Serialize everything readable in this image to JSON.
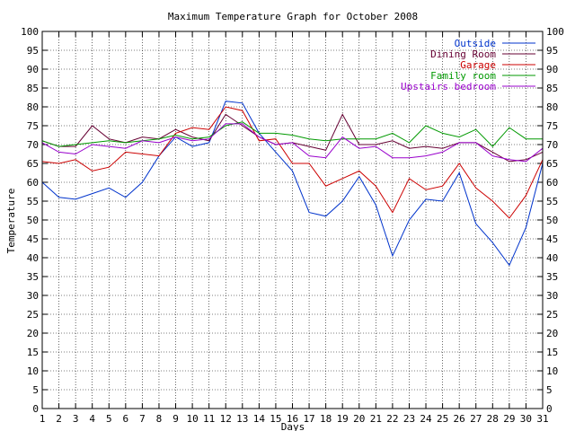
{
  "chart_data": {
    "type": "line",
    "title": "Maximum Temperature Graph for October 2008",
    "xlabel": "Days",
    "ylabel": "Temperature",
    "x": [
      1,
      2,
      3,
      4,
      5,
      6,
      7,
      8,
      9,
      10,
      11,
      12,
      13,
      14,
      15,
      16,
      17,
      18,
      19,
      20,
      21,
      22,
      23,
      24,
      25,
      26,
      27,
      28,
      29,
      30,
      31
    ],
    "xlim": [
      1,
      31
    ],
    "ylim": [
      0,
      100
    ],
    "ytick_step": 5,
    "grid": true,
    "legend_position": "top-right",
    "series": [
      {
        "name": "Outside",
        "color": "#0033cc",
        "values": [
          60,
          56,
          55.5,
          57,
          58.5,
          56,
          60,
          67,
          72,
          69.5,
          70.5,
          81.5,
          81,
          73,
          68,
          63,
          52,
          51,
          55,
          61.5,
          54,
          40.5,
          50,
          55.5,
          55,
          62.5,
          49,
          44,
          38,
          48,
          65
        ]
      },
      {
        "name": "Dining Room",
        "color": "#660033",
        "values": [
          71,
          69.5,
          69.5,
          75,
          71.5,
          70.5,
          72,
          71.5,
          74,
          72,
          71,
          78,
          75,
          72,
          70,
          70.5,
          69.5,
          68.5,
          78,
          70,
          70,
          71,
          69,
          69.5,
          69,
          70.5,
          70.5,
          68,
          65.5,
          66,
          68
        ]
      },
      {
        "name": "Garage",
        "color": "#cc0000",
        "values": [
          65.5,
          65,
          66,
          63,
          64,
          68,
          67.5,
          67,
          73,
          74.5,
          74,
          80,
          79,
          71,
          71.5,
          65,
          65,
          59,
          61,
          63,
          59,
          52,
          61,
          58,
          59,
          65,
          58.5,
          55,
          50.5,
          56.5,
          66
        ]
      },
      {
        "name": "Family room",
        "color": "#009900",
        "values": [
          71,
          69.5,
          70,
          70.5,
          71,
          70.5,
          71,
          71.5,
          72.5,
          71.5,
          72,
          75,
          76,
          73,
          73,
          72.5,
          71.5,
          71,
          71.5,
          71.5,
          71.5,
          73,
          70.5,
          75,
          73,
          72,
          74,
          69.5,
          74.5,
          71.5,
          71.5
        ]
      },
      {
        "name": "Upstairs bedroom",
        "color": "#9900cc",
        "values": [
          70.5,
          68,
          67.5,
          70,
          69.5,
          69,
          71,
          70.5,
          72,
          71,
          71.5,
          75.5,
          75.5,
          72,
          70,
          70.5,
          67,
          66.5,
          72,
          69,
          69.5,
          66.5,
          66.5,
          67,
          68,
          70.5,
          70.5,
          67,
          66,
          65.5,
          69
        ]
      }
    ]
  }
}
